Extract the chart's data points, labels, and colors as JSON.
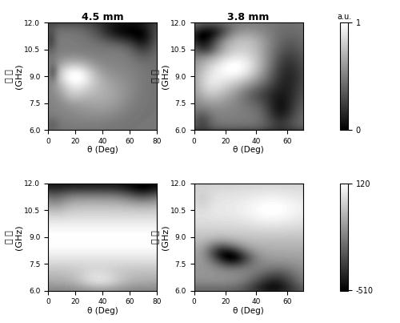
{
  "title_top_left": "4.5 mm",
  "title_top_right": "3.8 mm",
  "ylabel_chinese": "频 率",
  "ylabel_units": "(GHz)",
  "xlabel": "θ (Deg)",
  "ylim": [
    6.0,
    12.0
  ],
  "yticks": [
    6.0,
    7.5,
    9.0,
    10.5,
    12.0
  ],
  "xlim_left": [
    0,
    80
  ],
  "xlim_right": [
    0,
    70
  ],
  "xticks_left": [
    0,
    20,
    40,
    60,
    80
  ],
  "xticks_right": [
    0,
    20,
    40,
    60
  ],
  "cbar1_label": "a.u.",
  "cbar1_ticks": [
    0,
    1
  ],
  "cbar1_ticklabels": [
    "0",
    "1"
  ],
  "cbar2_ticks": [
    -510,
    120
  ],
  "cbar2_ticklabels": [
    "-510",
    "120"
  ],
  "background": "#ffffff"
}
